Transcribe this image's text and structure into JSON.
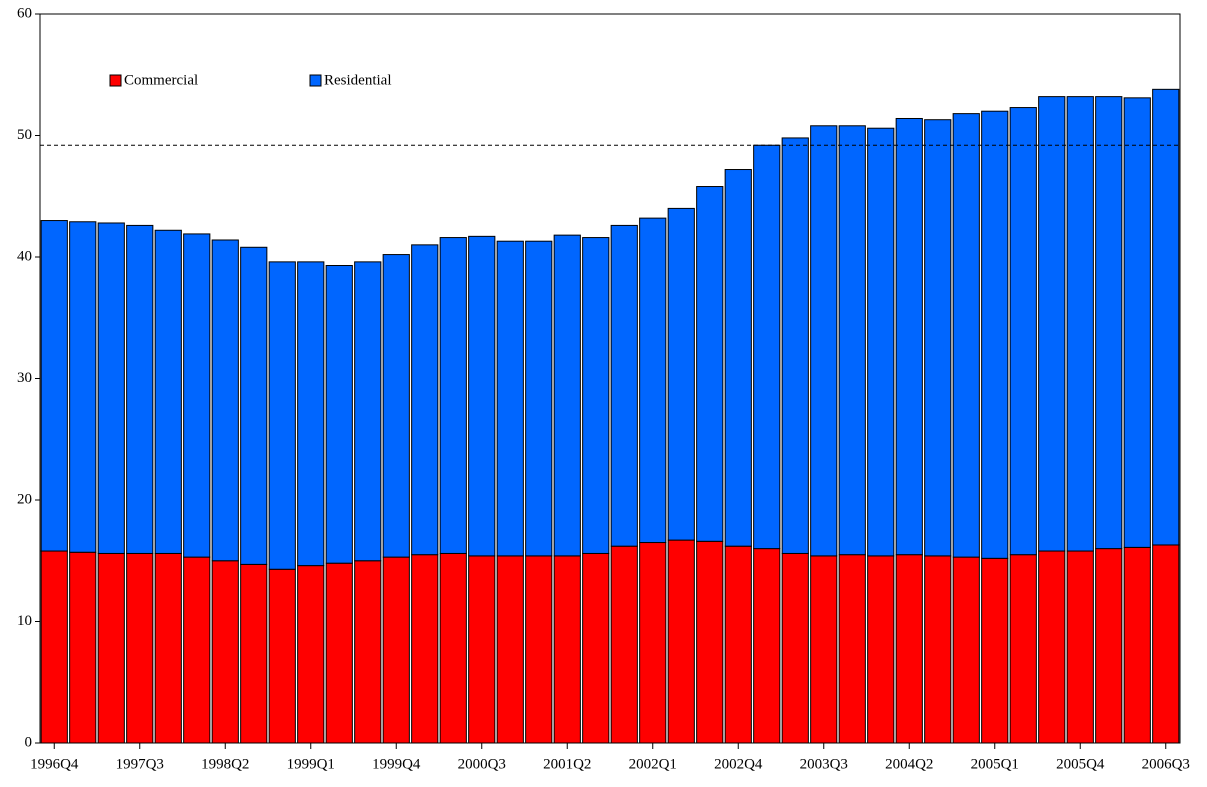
{
  "chart_data": {
    "type": "stacked_bar",
    "categories": [
      "1996Q4",
      null,
      null,
      "1997Q3",
      null,
      null,
      "1998Q2",
      null,
      null,
      "1999Q1",
      null,
      null,
      "1999Q4",
      null,
      null,
      "2000Q3",
      null,
      null,
      "2001Q2",
      null,
      null,
      "2002Q1",
      null,
      null,
      "2002Q4",
      null,
      null,
      "2003Q3",
      null,
      null,
      "2004Q2",
      null,
      null,
      "2005Q1",
      null,
      null,
      "2005Q4",
      null,
      null,
      "2006Q3"
    ],
    "series": [
      {
        "name": "Commercial",
        "color": "#ff0000",
        "values": [
          15.8,
          15.7,
          15.6,
          15.6,
          15.6,
          15.3,
          15.0,
          14.7,
          14.3,
          14.6,
          14.8,
          15.0,
          15.3,
          15.5,
          15.6,
          15.4,
          15.4,
          15.4,
          15.4,
          15.6,
          16.2,
          16.5,
          16.7,
          16.6,
          16.2,
          16.0,
          15.6,
          15.4,
          15.5,
          15.4,
          15.5,
          15.4,
          15.3,
          15.2,
          15.5,
          15.8,
          15.8,
          16.0,
          16.1,
          16.3
        ]
      },
      {
        "name": "Residential",
        "color": "#0066ff",
        "values": [
          27.2,
          27.2,
          27.2,
          27.0,
          26.6,
          26.6,
          26.4,
          26.1,
          25.3,
          25.0,
          24.5,
          24.6,
          24.9,
          25.5,
          26.0,
          26.3,
          25.9,
          25.9,
          26.4,
          26.0,
          26.4,
          26.7,
          27.3,
          29.2,
          31.0,
          33.2,
          34.2,
          35.4,
          35.3,
          35.2,
          35.9,
          35.9,
          36.5,
          36.8,
          36.8,
          37.4,
          37.4,
          37.2,
          37.0,
          37.5
        ]
      }
    ],
    "reference_line": 49.2,
    "ylim": [
      0,
      60
    ],
    "yticks": [
      0,
      10,
      20,
      30,
      40,
      50,
      60
    ],
    "legend": "upper left"
  }
}
